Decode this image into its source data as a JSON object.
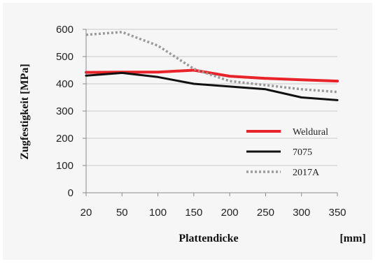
{
  "chart_data": {
    "type": "line",
    "title": "",
    "xlabel": "Plattendicke",
    "xunit": "[mm]",
    "ylabel": "Zugfestigkeit  [MPa]",
    "x": [
      20,
      50,
      100,
      150,
      200,
      250,
      300,
      350
    ],
    "xticks": [
      "20",
      "50",
      "100",
      "150",
      "200",
      "250",
      "300",
      "350"
    ],
    "yticks": [
      "0",
      "100",
      "200",
      "300",
      "400",
      "500",
      "600"
    ],
    "ylim": [
      0,
      600
    ],
    "grid": "horizontal",
    "legend_position": "right",
    "series": [
      {
        "name": "Weldural",
        "color": "#e8232a",
        "style": "solid",
        "values": [
          442,
          443,
          443,
          450,
          428,
          420,
          415,
          410
        ]
      },
      {
        "name": "7075",
        "color": "#111111",
        "style": "solid",
        "values": [
          430,
          440,
          425,
          400,
          390,
          380,
          350,
          340
        ]
      },
      {
        "name": "2017A",
        "color": "#9a9a9a",
        "style": "dotted",
        "values": [
          580,
          590,
          540,
          455,
          410,
          395,
          380,
          370
        ]
      }
    ]
  }
}
